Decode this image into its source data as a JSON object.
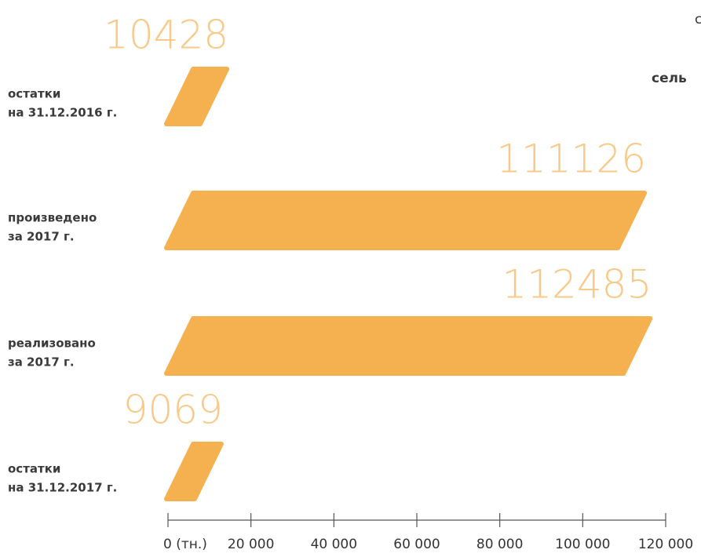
{
  "chart_data": {
    "type": "bar",
    "orientation": "horizontal",
    "categories": [
      [
        "остатки",
        "на 31.12.2016 г."
      ],
      [
        "произведено",
        "за 2017 г."
      ],
      [
        "реализовано",
        "за 2017 г."
      ],
      [
        "остатки",
        "на 31.12.2017 г."
      ]
    ],
    "values": [
      10428,
      111126,
      112485,
      9069
    ],
    "color": "#f5b04f",
    "value_label_color": "#f8c987",
    "xlim": [
      0,
      120000
    ],
    "xticks": [
      {
        "value": 0,
        "label": "0 (тн.)"
      },
      {
        "value": 20000,
        "label": "20 000"
      },
      {
        "value": 40000,
        "label": "40 000"
      },
      {
        "value": 60000,
        "label": "60 000"
      },
      {
        "value": 80000,
        "label": "80 000"
      },
      {
        "value": 100000,
        "label": "100 000"
      },
      {
        "value": 120000,
        "label": "120 000"
      }
    ],
    "annotations": [
      "с",
      "сель"
    ]
  }
}
